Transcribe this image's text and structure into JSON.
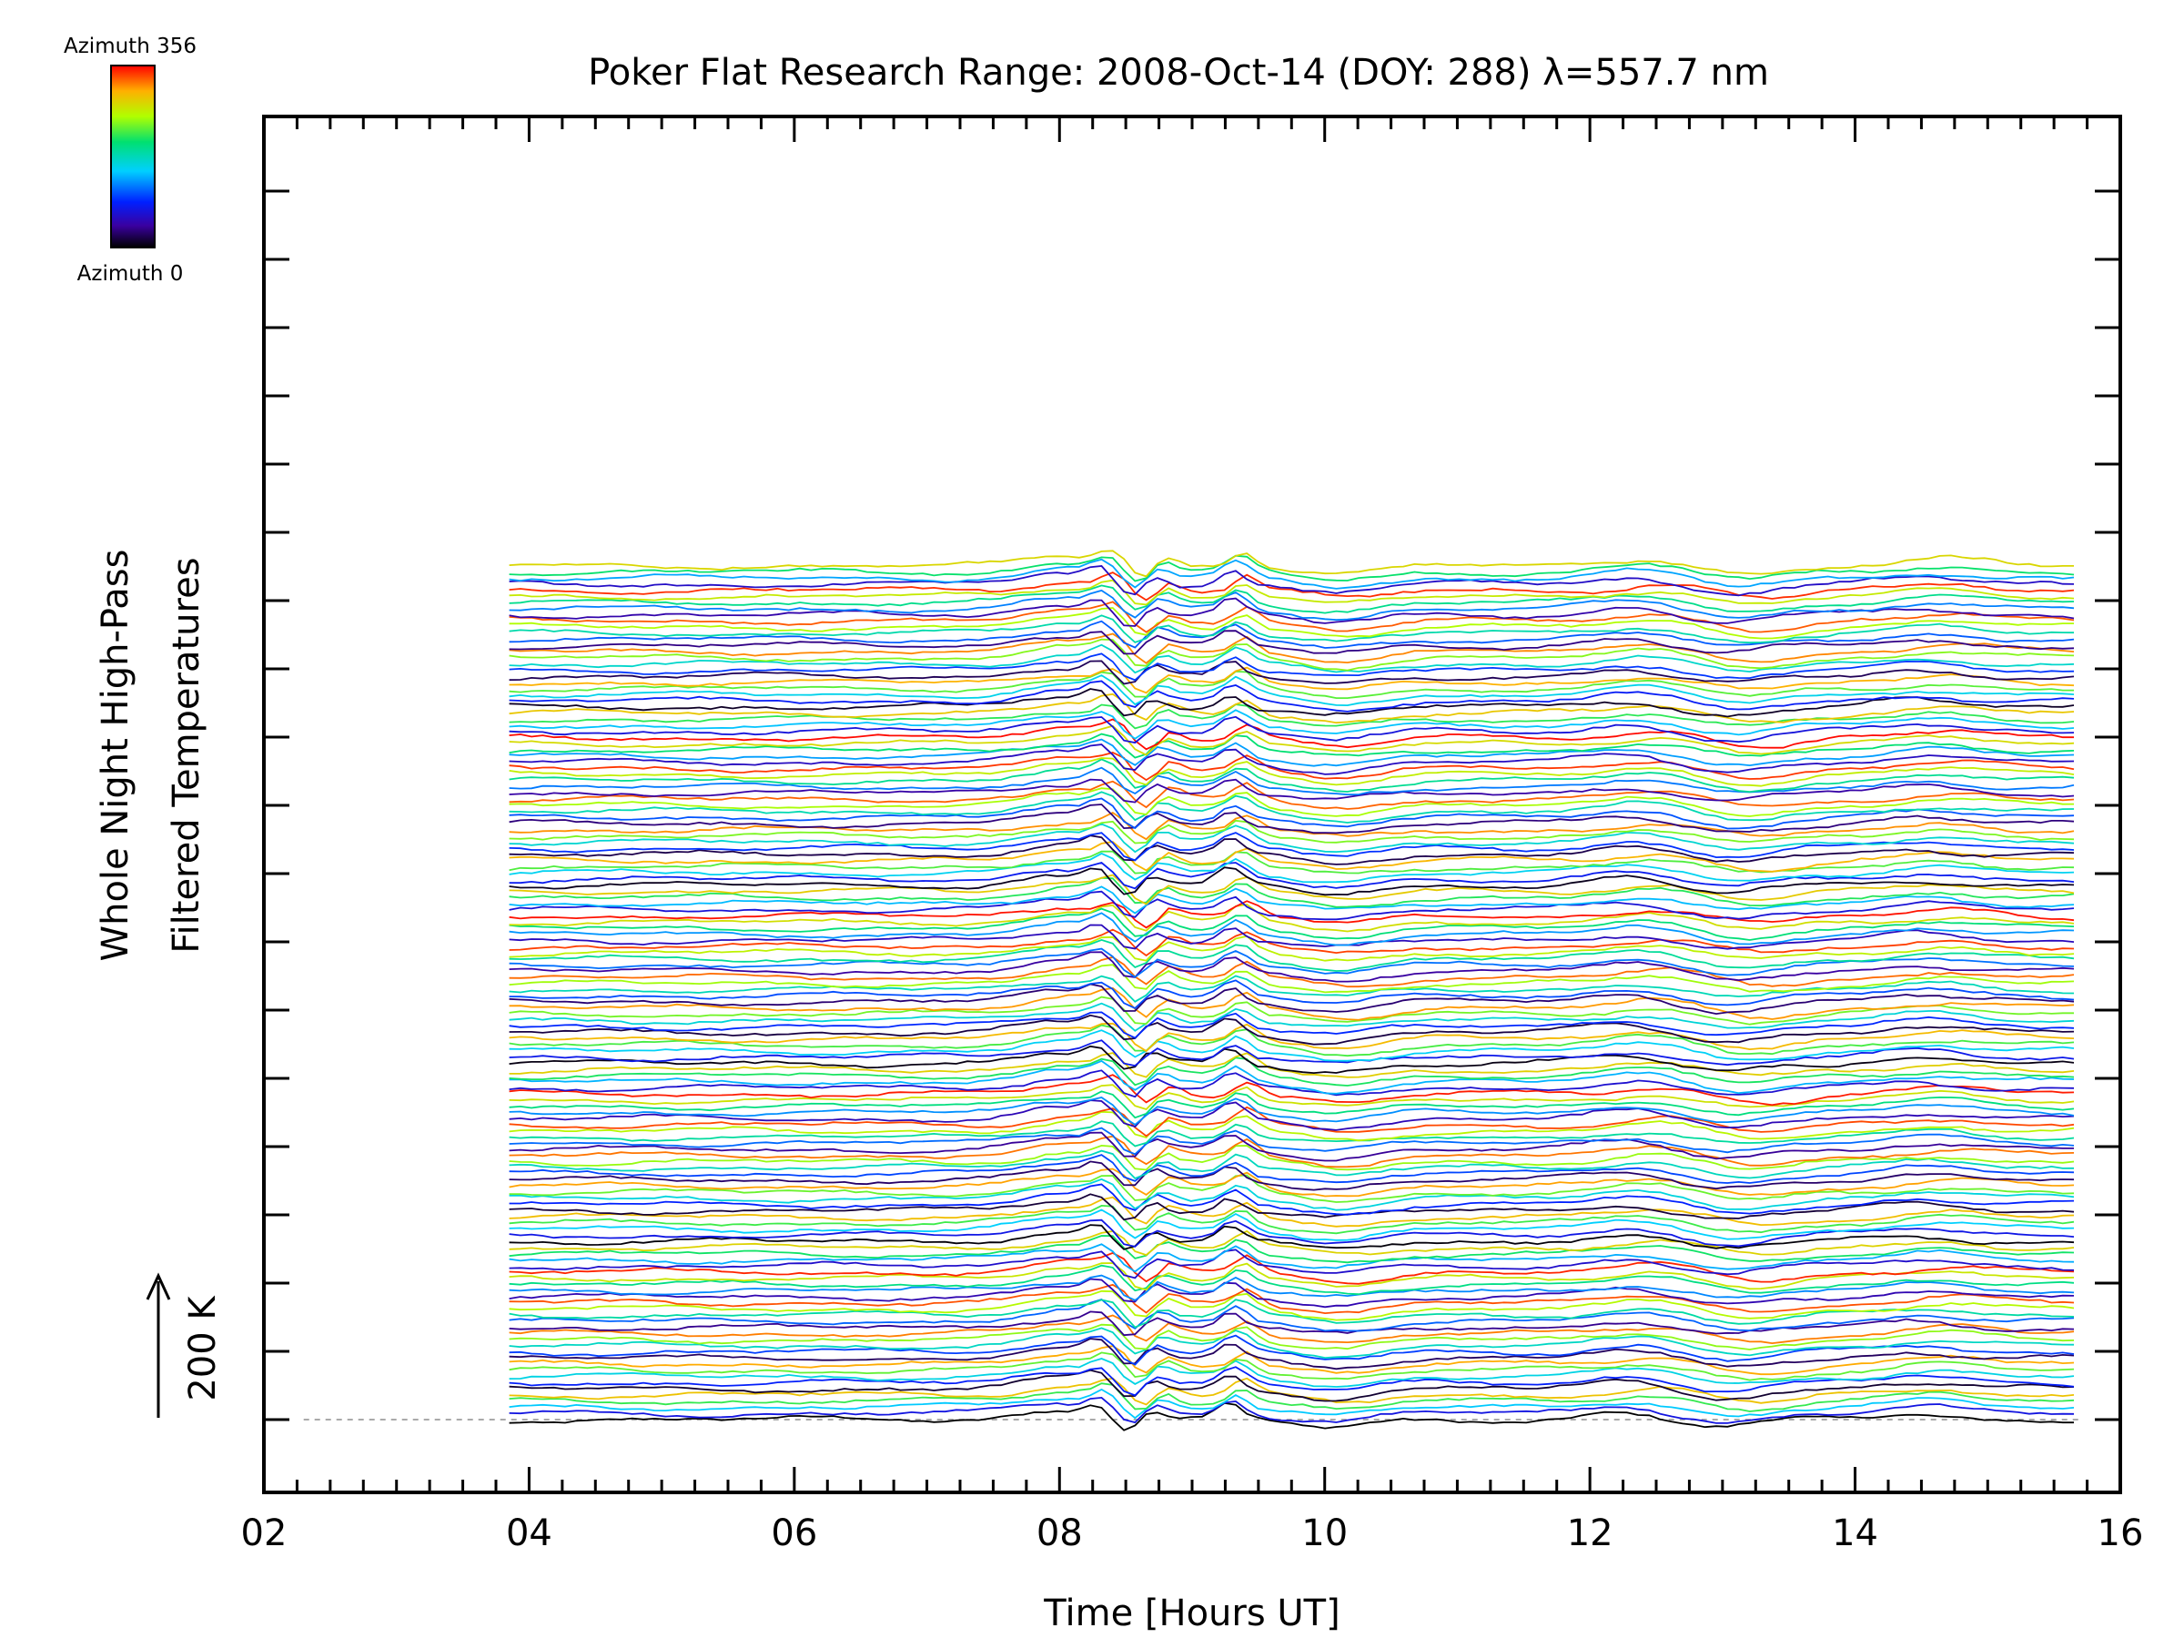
{
  "chart_data": {
    "type": "line",
    "title": "Poker Flat Research Range: 2008-Oct-14 (DOY: 288) λ=557.7 nm",
    "xlabel": "Time [Hours UT]",
    "ylabel_line1": "Whole Night High-Pass",
    "ylabel_line2": "Filtered Temperatures",
    "xlim": [
      2,
      16
    ],
    "x_ticks": [
      "02",
      "04",
      "06",
      "08",
      "10",
      "12",
      "14",
      "16"
    ],
    "x_tick_values": [
      2,
      4,
      6,
      8,
      10,
      12,
      14,
      16
    ],
    "scale_bar_label": "200 K",
    "scale_bar_value": 200,
    "colorbar": {
      "top_label": "Azimuth 356",
      "bottom_label": "Azimuth 0",
      "min": 0,
      "max": 356,
      "colormap": "rainbow"
    },
    "grid": false,
    "baseline_dashed": true,
    "time_start": 3.85,
    "time_end": 15.65,
    "trace_count": 140,
    "trace_spacing_K": 9,
    "azimuth_cycle_count": 29,
    "common_features": [
      {
        "time": 8.05,
        "amplitude_K": 14
      },
      {
        "time": 8.35,
        "amplitude_K": 18
      },
      {
        "time": 8.6,
        "amplitude_K": -20
      },
      {
        "time": 8.75,
        "amplitude_K": 16
      },
      {
        "time": 9.35,
        "amplitude_K": 22
      },
      {
        "time": 10.1,
        "amplitude_K": -12
      },
      {
        "time": 12.4,
        "amplitude_K": 10
      },
      {
        "time": 13.15,
        "amplitude_K": -12
      },
      {
        "time": 14.6,
        "amplitude_K": 9
      }
    ],
    "colors": {
      "axis": "#000000",
      "baseline": "#aaaaaa"
    }
  }
}
